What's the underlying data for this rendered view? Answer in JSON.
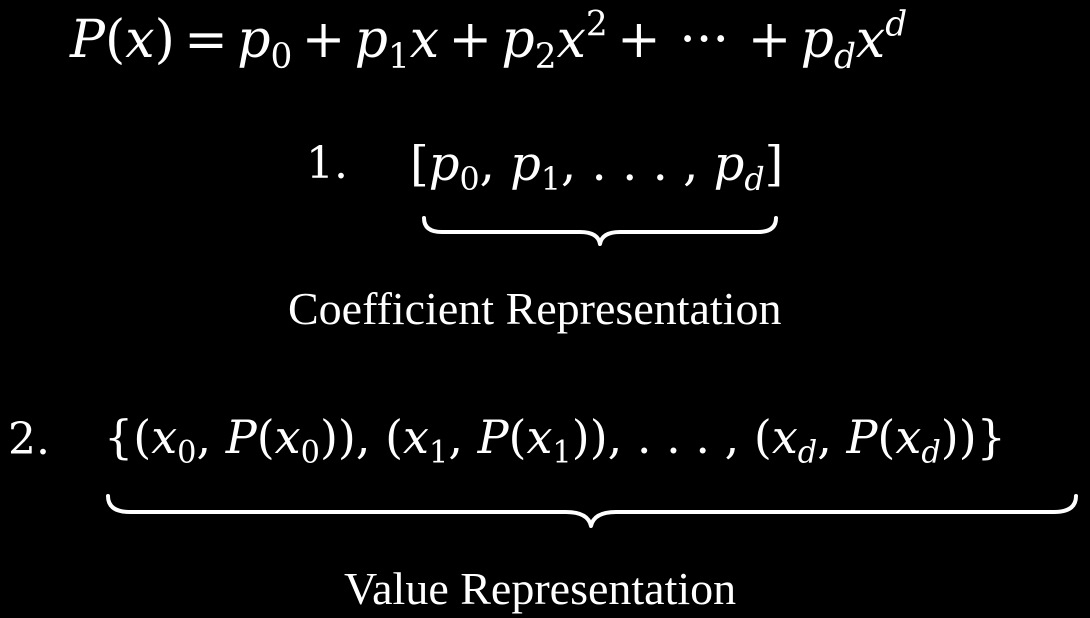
{
  "polynomial": {
    "lhs": "P(x)",
    "equals": "=",
    "terms": [
      {
        "coef": "p",
        "sub": "0",
        "var": "",
        "exp": ""
      },
      {
        "coef": "p",
        "sub": "1",
        "var": "x",
        "exp": ""
      },
      {
        "coef": "p",
        "sub": "2",
        "var": "x",
        "exp": "2"
      },
      {
        "coef": "p",
        "sub": "d",
        "var": "x",
        "exp": "d"
      }
    ],
    "plus": "+",
    "ellipsis": "···"
  },
  "representations": [
    {
      "number": "1.",
      "expression": "[p0, p1, ..., pd]",
      "caption": "Coefficient Representation"
    },
    {
      "number": "2.",
      "expression": "{(x0, P(x0)), (x1, P(x1)), ..., (xd, P(xd))}",
      "caption": "Value Representation"
    }
  ]
}
